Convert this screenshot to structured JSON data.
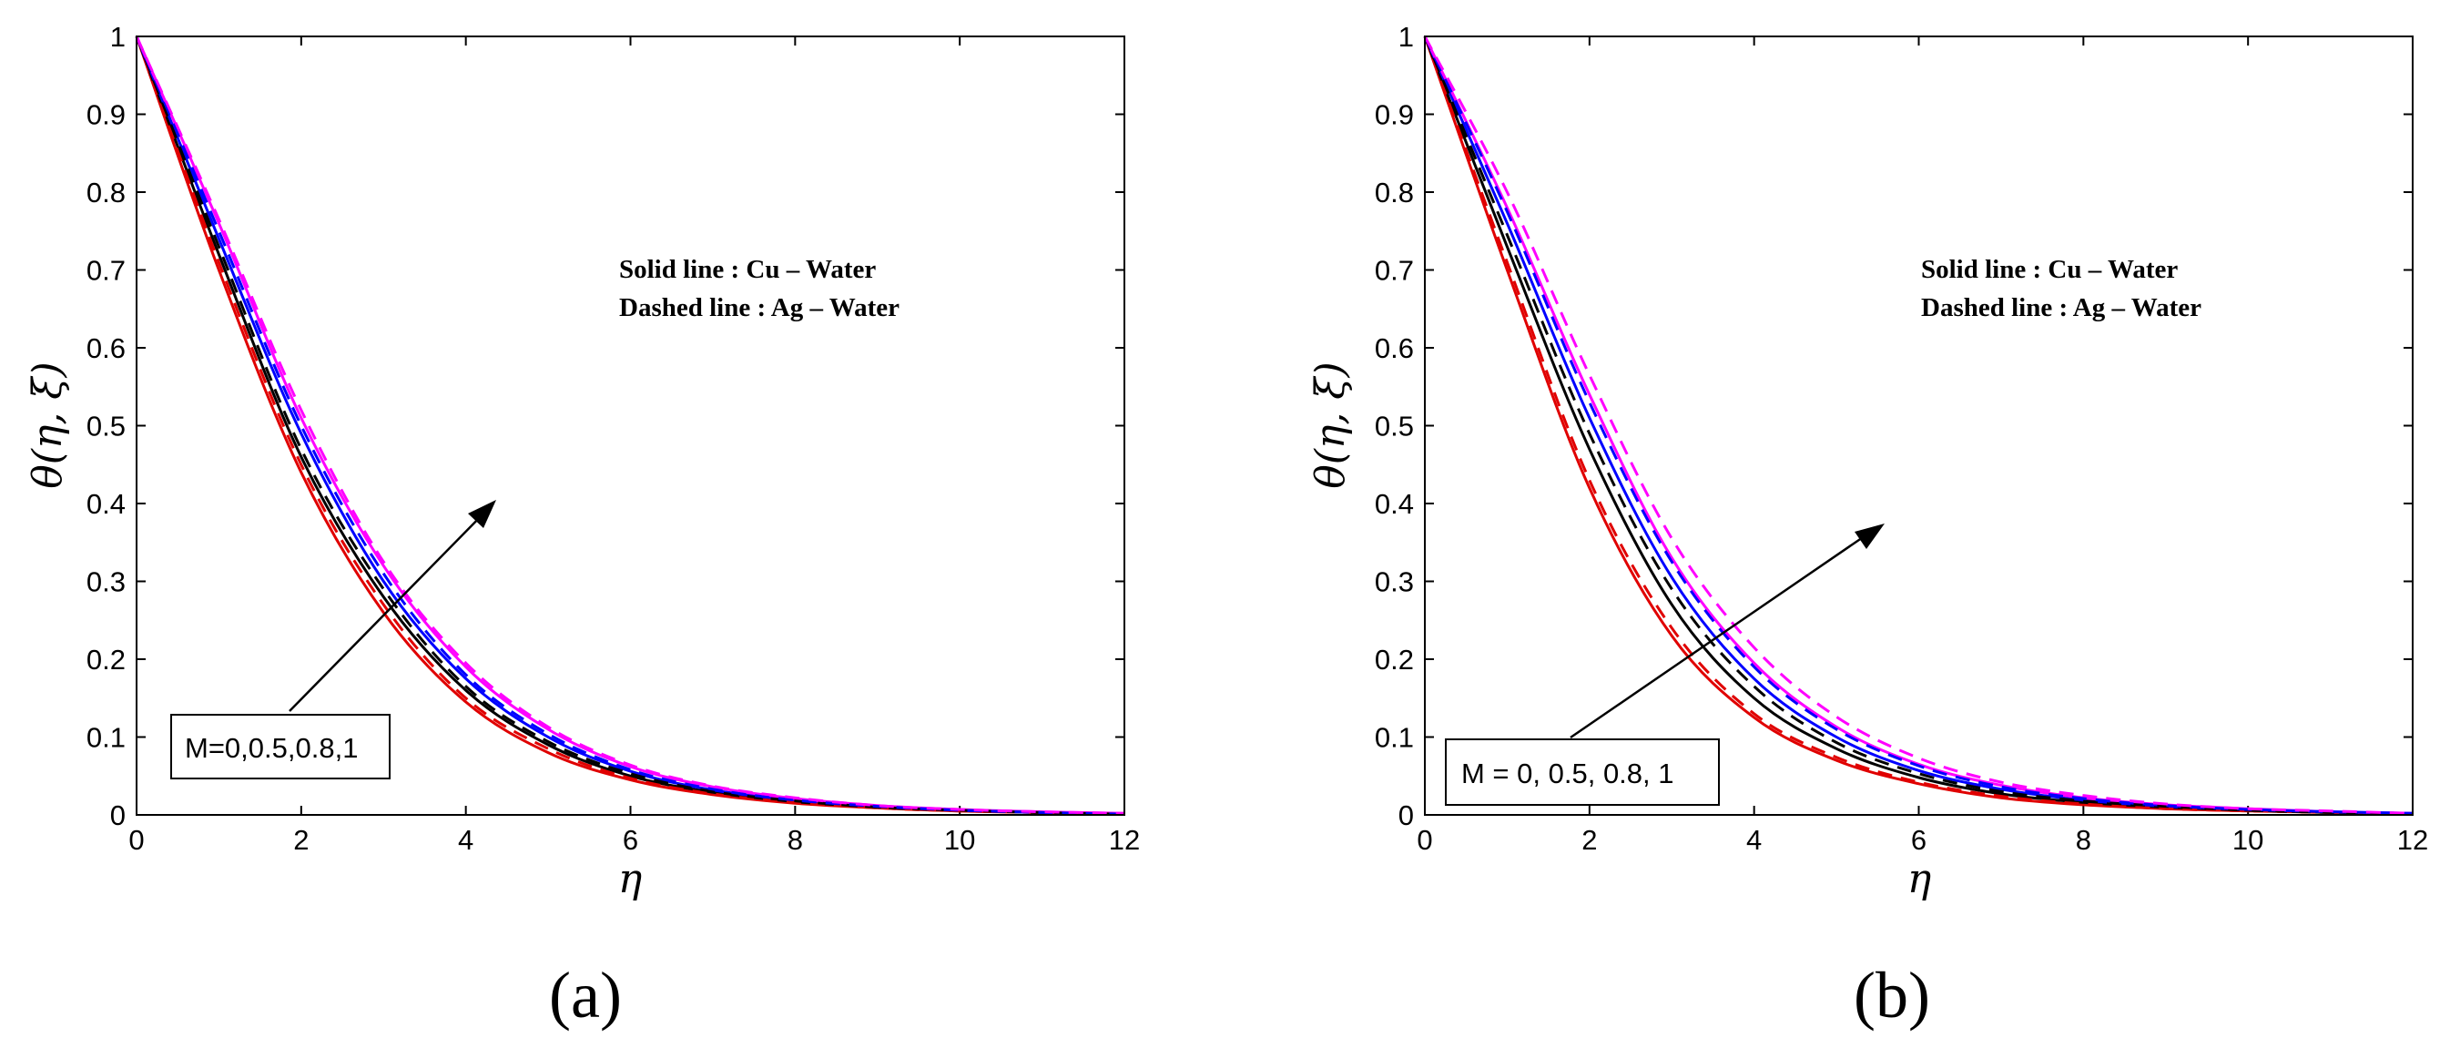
{
  "figure": {
    "legend_line1": "Solid line : Cu – Water",
    "legend_line2": "Dashed line : Ag – Water"
  },
  "chart_data": [
    {
      "type": "line",
      "panel_label": "(a)",
      "xlabel": "η",
      "ylabel": "θ(η, ξ)",
      "xlim": [
        0,
        12
      ],
      "ylim": [
        0,
        1
      ],
      "xticks": [
        "0",
        "2",
        "4",
        "6",
        "8",
        "10",
        "12"
      ],
      "yticks": [
        "0",
        "0.1",
        "0.2",
        "0.3",
        "0.4",
        "0.5",
        "0.6",
        "0.7",
        "0.8",
        "0.9",
        "1"
      ],
      "annotation": "M=0,0.5,0.8,1",
      "legend": [
        "Solid line : Cu – Water",
        "Dashed line : Ag – Water"
      ],
      "x": [
        0,
        1,
        2,
        3,
        4,
        5,
        6,
        7,
        8,
        9,
        10,
        11,
        12
      ],
      "series": [
        {
          "name": "Cu-Water, M=0",
          "color": "#e00000",
          "dash": "solid",
          "values": [
            1.0,
            0.7,
            0.44,
            0.26,
            0.145,
            0.08,
            0.045,
            0.026,
            0.015,
            0.009,
            0.005,
            0.003,
            0.001
          ]
        },
        {
          "name": "Cu-Water, M=0.5",
          "color": "#000000",
          "dash": "solid",
          "values": [
            1.0,
            0.72,
            0.46,
            0.28,
            0.16,
            0.09,
            0.05,
            0.029,
            0.017,
            0.01,
            0.006,
            0.003,
            0.001
          ]
        },
        {
          "name": "Cu-Water, M=0.8",
          "color": "#0000ff",
          "dash": "solid",
          "values": [
            1.0,
            0.74,
            0.49,
            0.3,
            0.175,
            0.1,
            0.056,
            0.032,
            0.019,
            0.011,
            0.006,
            0.003,
            0.001
          ]
        },
        {
          "name": "Cu-Water, M=1",
          "color": "#ff00ff",
          "dash": "solid",
          "values": [
            1.0,
            0.76,
            0.51,
            0.32,
            0.19,
            0.11,
            0.062,
            0.036,
            0.021,
            0.012,
            0.007,
            0.004,
            0.002
          ]
        },
        {
          "name": "Ag-Water, M=0",
          "color": "#e00000",
          "dash": "dashed",
          "values": [
            1.0,
            0.71,
            0.45,
            0.27,
            0.15,
            0.085,
            0.047,
            0.027,
            0.016,
            0.009,
            0.005,
            0.003,
            0.001
          ]
        },
        {
          "name": "Ag-Water, M=0.5",
          "color": "#000000",
          "dash": "dashed",
          "values": [
            1.0,
            0.73,
            0.47,
            0.29,
            0.165,
            0.094,
            0.053,
            0.03,
            0.018,
            0.01,
            0.006,
            0.003,
            0.001
          ]
        },
        {
          "name": "Ag-Water, M=0.8",
          "color": "#0000ff",
          "dash": "dashed",
          "values": [
            1.0,
            0.75,
            0.5,
            0.31,
            0.18,
            0.104,
            0.058,
            0.033,
            0.019,
            0.011,
            0.006,
            0.003,
            0.001
          ]
        },
        {
          "name": "Ag-Water, M=1",
          "color": "#ff00ff",
          "dash": "dashed",
          "values": [
            1.0,
            0.765,
            0.52,
            0.325,
            0.195,
            0.113,
            0.064,
            0.037,
            0.022,
            0.012,
            0.007,
            0.004,
            0.002
          ]
        }
      ]
    },
    {
      "type": "line",
      "panel_label": "(b)",
      "xlabel": "η",
      "ylabel": "θ(η, ξ)",
      "xlim": [
        0,
        12
      ],
      "ylim": [
        0,
        1
      ],
      "xticks": [
        "0",
        "2",
        "4",
        "6",
        "8",
        "10",
        "12"
      ],
      "yticks": [
        "0",
        "0.1",
        "0.2",
        "0.3",
        "0.4",
        "0.5",
        "0.6",
        "0.7",
        "0.8",
        "0.9",
        "1"
      ],
      "annotation": "M = 0, 0.5, 0.8, 1",
      "legend": [
        "Solid line : Cu – Water",
        "Dashed line : Ag – Water"
      ],
      "x": [
        0,
        1,
        2,
        3,
        4,
        5,
        6,
        7,
        8,
        9,
        10,
        11,
        12
      ],
      "series": [
        {
          "name": "Cu-Water, M=0",
          "color": "#e00000",
          "dash": "solid",
          "values": [
            1.0,
            0.7,
            0.42,
            0.23,
            0.125,
            0.07,
            0.04,
            0.022,
            0.013,
            0.008,
            0.005,
            0.003,
            0.001
          ]
        },
        {
          "name": "Cu-Water, M=0.5",
          "color": "#000000",
          "dash": "solid",
          "values": [
            1.0,
            0.73,
            0.47,
            0.27,
            0.15,
            0.085,
            0.048,
            0.027,
            0.016,
            0.01,
            0.006,
            0.003,
            0.001
          ]
        },
        {
          "name": "Cu-Water, M=0.8",
          "color": "#0000ff",
          "dash": "solid",
          "values": [
            1.0,
            0.76,
            0.51,
            0.305,
            0.175,
            0.1,
            0.057,
            0.033,
            0.019,
            0.011,
            0.007,
            0.004,
            0.002
          ]
        },
        {
          "name": "Cu-Water, M=1",
          "color": "#ff00ff",
          "dash": "solid",
          "values": [
            1.0,
            0.78,
            0.54,
            0.33,
            0.195,
            0.113,
            0.065,
            0.038,
            0.022,
            0.013,
            0.008,
            0.004,
            0.002
          ]
        },
        {
          "name": "Ag-Water, M=0",
          "color": "#e00000",
          "dash": "dashed",
          "values": [
            1.0,
            0.71,
            0.43,
            0.24,
            0.13,
            0.074,
            0.042,
            0.024,
            0.014,
            0.008,
            0.005,
            0.003,
            0.001
          ]
        },
        {
          "name": "Ag-Water, M=0.5",
          "color": "#000000",
          "dash": "dashed",
          "values": [
            1.0,
            0.745,
            0.49,
            0.29,
            0.165,
            0.093,
            0.053,
            0.03,
            0.018,
            0.011,
            0.006,
            0.003,
            0.001
          ]
        },
        {
          "name": "Ag-Water, M=0.8",
          "color": "#0000ff",
          "dash": "dashed",
          "values": [
            1.0,
            0.775,
            0.53,
            0.325,
            0.19,
            0.11,
            0.063,
            0.036,
            0.021,
            0.012,
            0.007,
            0.004,
            0.002
          ]
        },
        {
          "name": "Ag-Water, M=1",
          "color": "#ff00ff",
          "dash": "dashed",
          "values": [
            1.0,
            0.8,
            0.565,
            0.355,
            0.215,
            0.126,
            0.073,
            0.042,
            0.025,
            0.014,
            0.008,
            0.005,
            0.002
          ]
        }
      ]
    }
  ]
}
